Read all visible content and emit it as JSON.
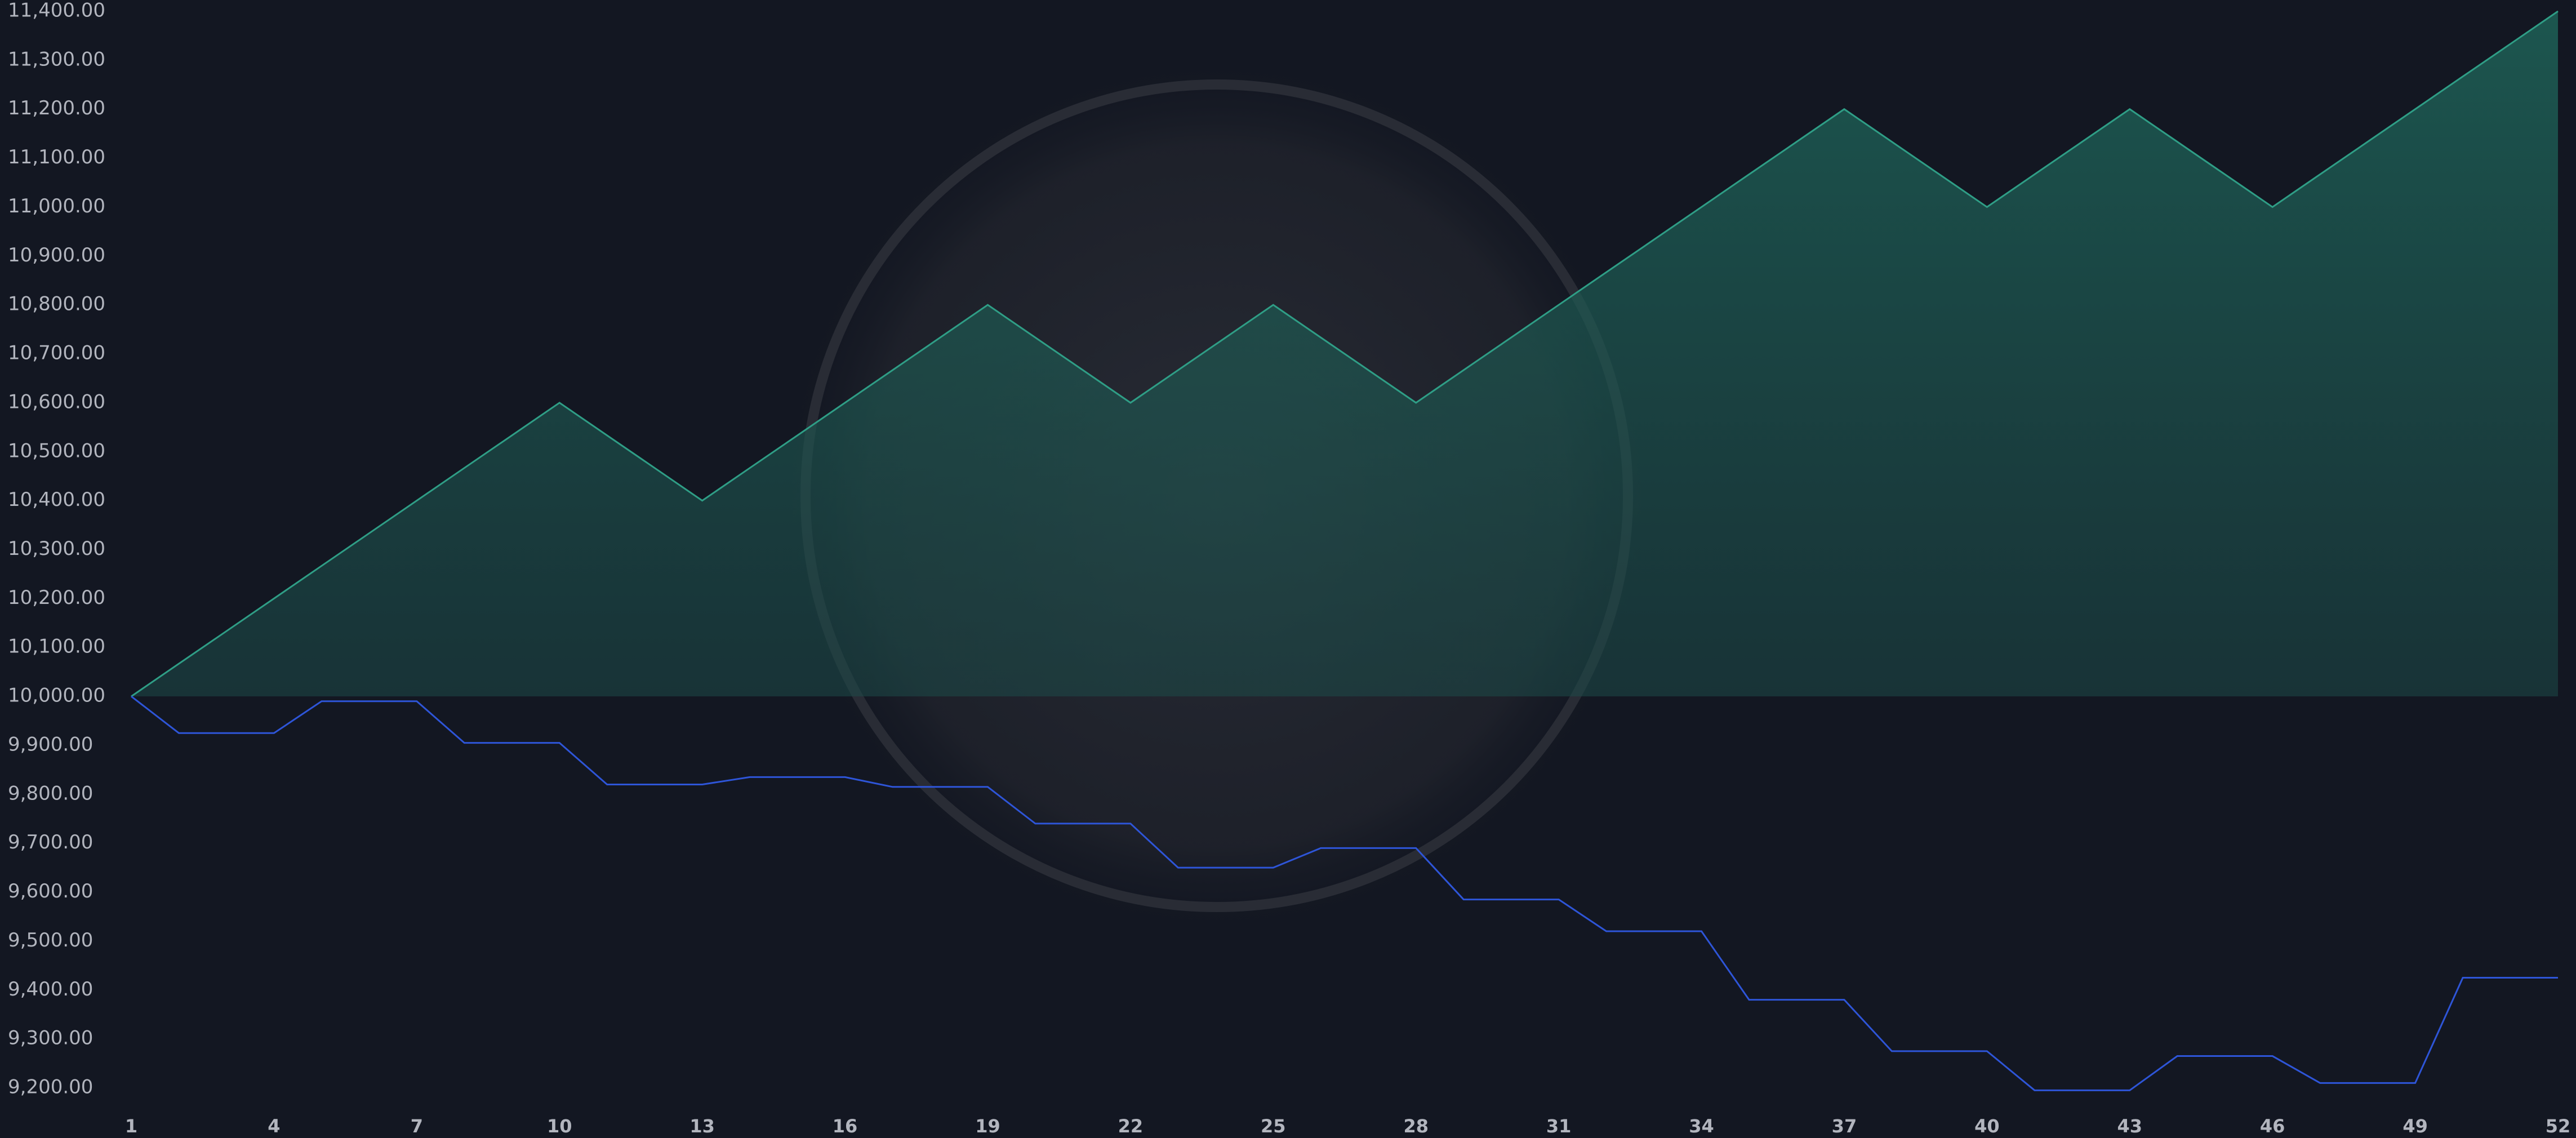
{
  "chart_data": {
    "type": "line",
    "x": [
      1,
      2,
      3,
      4,
      5,
      6,
      7,
      8,
      9,
      10,
      11,
      12,
      13,
      14,
      15,
      16,
      17,
      18,
      19,
      20,
      21,
      22,
      23,
      24,
      25,
      26,
      27,
      28,
      29,
      30,
      31,
      32,
      33,
      34,
      35,
      36,
      37,
      38,
      39,
      40,
      41,
      42,
      43,
      44,
      45,
      46,
      47,
      48,
      49,
      50,
      51,
      52
    ],
    "series": [
      {
        "color": "#2f9e86",
        "fill": true,
        "baseline": 10000,
        "values": [
          10000,
          10066.7,
          10133.3,
          10200,
          10266.7,
          10333.3,
          10400,
          10466.7,
          10533.3,
          10600,
          10533.3,
          10466.7,
          10400,
          10466.7,
          10533.3,
          10600,
          10666.7,
          10733.3,
          10800,
          10733.3,
          10666.7,
          10600,
          10666.7,
          10733.3,
          10800,
          10733.3,
          10666.7,
          10600,
          10666.7,
          10733.3,
          10800,
          10866.7,
          10933.3,
          11000,
          11066.7,
          11133.3,
          11200,
          11133.3,
          11066.7,
          11000,
          11066.7,
          11133.3,
          11200,
          11133.3,
          11066.7,
          11000,
          11066.7,
          11133.3,
          11200,
          11266.7,
          11333.3,
          11400
        ]
      },
      {
        "color": "#2e55d8",
        "fill": false,
        "values": [
          10000,
          9925,
          9925,
          9925,
          9990,
          9990,
          9990,
          9905,
          9905,
          9905,
          9820,
          9820,
          9820,
          9835,
          9835,
          9835,
          9815,
          9815,
          9815,
          9740,
          9740,
          9740,
          9650,
          9650,
          9650,
          9690,
          9690,
          9690,
          9585,
          9585,
          9585,
          9520,
          9520,
          9520,
          9380,
          9380,
          9380,
          9275,
          9275,
          9275,
          9195,
          9195,
          9195,
          9265,
          9265,
          9265,
          9210,
          9210,
          9210,
          9425,
          9425,
          9425
        ]
      }
    ],
    "xlim": [
      1,
      52
    ],
    "xticks": [
      1,
      4,
      7,
      10,
      13,
      16,
      19,
      22,
      25,
      28,
      31,
      34,
      37,
      40,
      43,
      46,
      49,
      52
    ],
    "ylim": [
      9200,
      11400
    ],
    "yticks": [
      {
        "value": 9200,
        "label": "9,200.00"
      },
      {
        "value": 9300,
        "label": "9,300.00"
      },
      {
        "value": 9400,
        "label": "9,400.00"
      },
      {
        "value": 9500,
        "label": "9,500.00"
      },
      {
        "value": 9600,
        "label": "9,600.00"
      },
      {
        "value": 9700,
        "label": "9,700.00"
      },
      {
        "value": 9800,
        "label": "9,800.00"
      },
      {
        "value": 9900,
        "label": "9,900.00"
      },
      {
        "value": 10000,
        "label": "10,000.00"
      },
      {
        "value": 10100,
        "label": "10,100.00"
      },
      {
        "value": 10200,
        "label": "10,200.00"
      },
      {
        "value": 10300,
        "label": "10,300.00"
      },
      {
        "value": 10400,
        "label": "10,400.00"
      },
      {
        "value": 10500,
        "label": "10,500.00"
      },
      {
        "value": 10600,
        "label": "10,600.00"
      },
      {
        "value": 10700,
        "label": "10,700.00"
      },
      {
        "value": 10800,
        "label": "10,800.00"
      },
      {
        "value": 10900,
        "label": "10,900.00"
      },
      {
        "value": 11000,
        "label": "11,000.00"
      },
      {
        "value": 11100,
        "label": "11,100.00"
      },
      {
        "value": 11200,
        "label": "11,200.00"
      },
      {
        "value": 11300,
        "label": "11,300.00"
      },
      {
        "value": 11400,
        "label": "11,400.00"
      }
    ],
    "grid": false
  }
}
